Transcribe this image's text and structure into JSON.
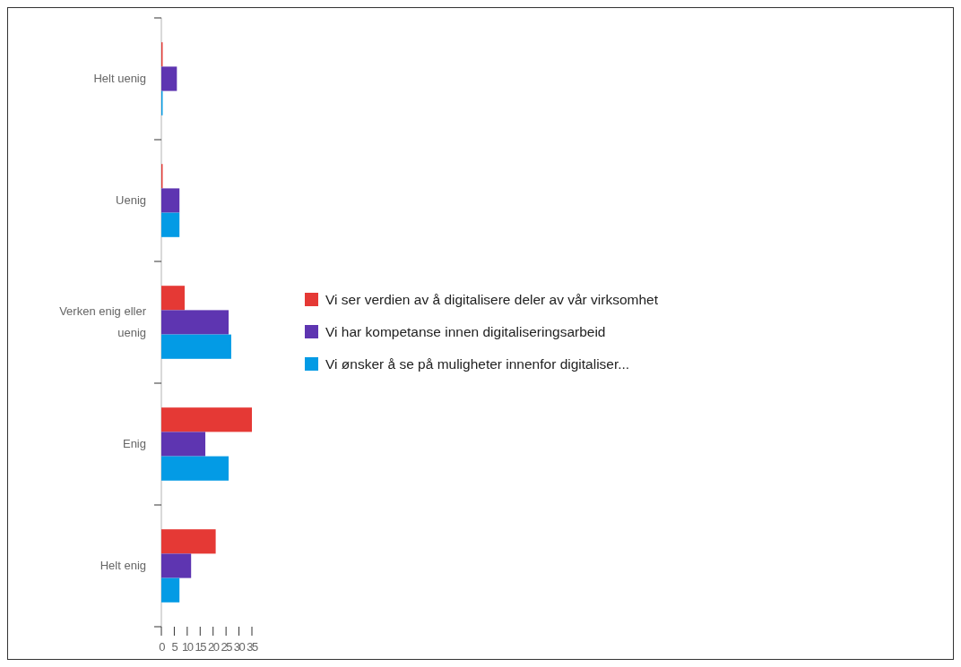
{
  "chart_data": {
    "type": "bar",
    "orientation": "horizontal",
    "categories": [
      "Helt uenig",
      "Uenig",
      "Verken enig eller uenig",
      "Enig",
      "Helt enig"
    ],
    "series": [
      {
        "name": "Vi ser verdien av å digitalisere deler av vår virksomhet",
        "color": "#e53935",
        "values": [
          0.5,
          0.5,
          9,
          35,
          21
        ]
      },
      {
        "name": "Vi har kompetanse innen digitaliseringsarbeid",
        "color": "#5e35b1",
        "values": [
          6,
          7,
          26,
          17,
          11.5
        ]
      },
      {
        "name": "Vi ønsker å se på muligheter innenfor digitaliser...",
        "color": "#039be5",
        "values": [
          0.5,
          7,
          27,
          26,
          7
        ]
      }
    ],
    "xlim": [
      0,
      35
    ],
    "xticks": [
      0,
      5,
      10,
      15,
      20,
      25,
      30,
      35
    ],
    "grid": false,
    "legend": "right"
  }
}
